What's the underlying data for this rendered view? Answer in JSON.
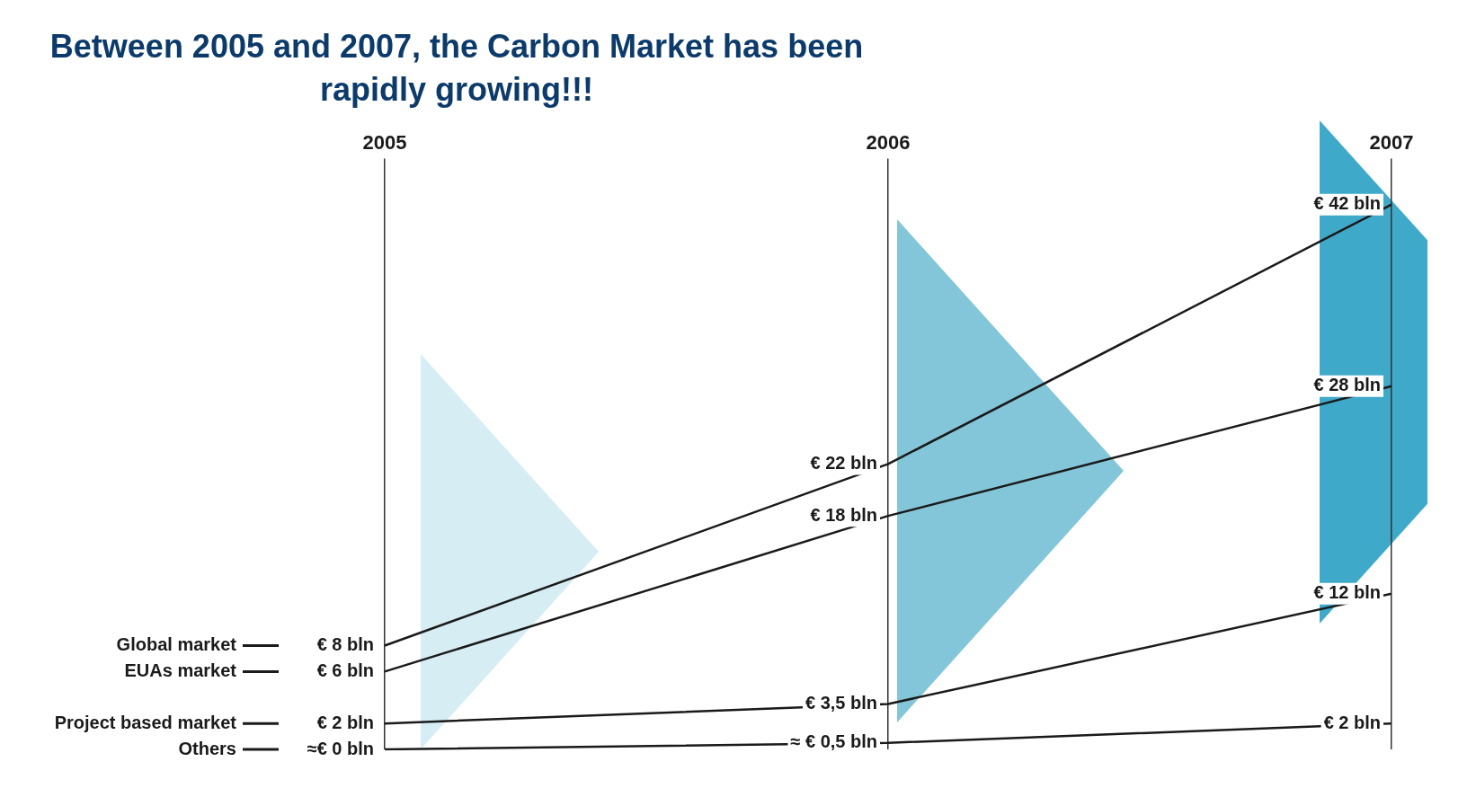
{
  "chart_data": {
    "type": "line",
    "title": "Between 2005 and 2007, the Carbon Market has been rapidly growing!!!",
    "categories": [
      "2005",
      "2006",
      "2007"
    ],
    "marker": "none",
    "grid": "x",
    "legend": "bottom left",
    "series": [
      {
        "name": "Global market",
        "color": "#1a1a1a",
        "values": [
          8,
          22,
          42
        ],
        "value_labels": [
          "€ 8 bln",
          "€ 22 bln",
          "€ 42 bln"
        ]
      },
      {
        "name": "EUAs market",
        "color": "#1a1a1a",
        "values": [
          6,
          18,
          28
        ],
        "value_labels": [
          "€ 6 bln",
          "€ 18 bln",
          "€ 28 bln"
        ]
      },
      {
        "name": "Project based market",
        "color": "#1a1a1a",
        "values": [
          2,
          3.5,
          12
        ],
        "value_labels": [
          "€ 2 bln",
          "€ 3,5 bln",
          "€ 12 bln"
        ]
      },
      {
        "name": "Others",
        "color": "#1a1a1a",
        "values": [
          0,
          0.5,
          2
        ],
        "value_labels": [
          "≈€ 0 bln",
          "≈ € 0,5 bln",
          "€ 2 bln"
        ]
      }
    ]
  }
}
